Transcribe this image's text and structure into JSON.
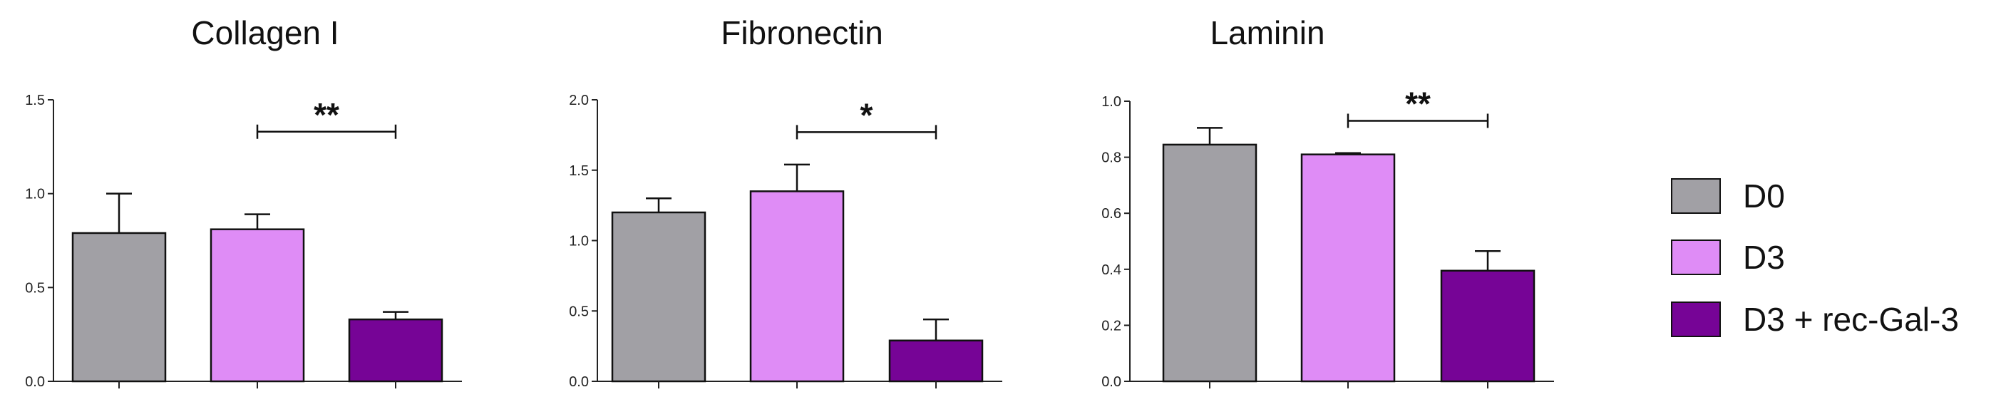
{
  "chart_data": [
    {
      "type": "bar",
      "title": "Collagen I",
      "categories": [
        "D0",
        "D3",
        "D3 + rec-Gal-3"
      ],
      "values": [
        0.79,
        0.81,
        0.33
      ],
      "errors": [
        0.21,
        0.08,
        0.04
      ],
      "ylim": [
        0.0,
        1.5
      ],
      "yticks": [
        "0.0",
        "0.5",
        "1.0",
        "1.5"
      ],
      "significance": {
        "from": 1,
        "to": 2,
        "label": "**",
        "y": 1.33
      }
    },
    {
      "type": "bar",
      "title": "Fibronectin",
      "categories": [
        "D0",
        "D3",
        "D3 + rec-Gal-3"
      ],
      "values": [
        1.2,
        1.35,
        0.29
      ],
      "errors": [
        0.1,
        0.19,
        0.15
      ],
      "ylim": [
        0.0,
        2.0
      ],
      "yticks": [
        "0.0",
        "0.5",
        "1.0",
        "1.5",
        "2.0"
      ],
      "significance": {
        "from": 1,
        "to": 2,
        "label": "*",
        "y": 1.77
      }
    },
    {
      "type": "bar",
      "title": "Laminin",
      "categories": [
        "D0",
        "D3",
        "D3 + rec-Gal-3"
      ],
      "values": [
        0.845,
        0.81,
        0.395
      ],
      "errors": [
        0.06,
        0.005,
        0.07
      ],
      "ylim": [
        0.0,
        1.0
      ],
      "yticks": [
        "0.0",
        "0.2",
        "0.4",
        "0.6",
        "0.8",
        "1.0"
      ],
      "significance": {
        "from": 1,
        "to": 2,
        "label": "**",
        "y": 0.93
      }
    }
  ],
  "legend": [
    {
      "label": "D0",
      "color": "#a1a0a5"
    },
    {
      "label": "D3",
      "color": "#df8cf6"
    },
    {
      "label": "D3 + rec-Gal-3",
      "color": "#760496"
    }
  ]
}
